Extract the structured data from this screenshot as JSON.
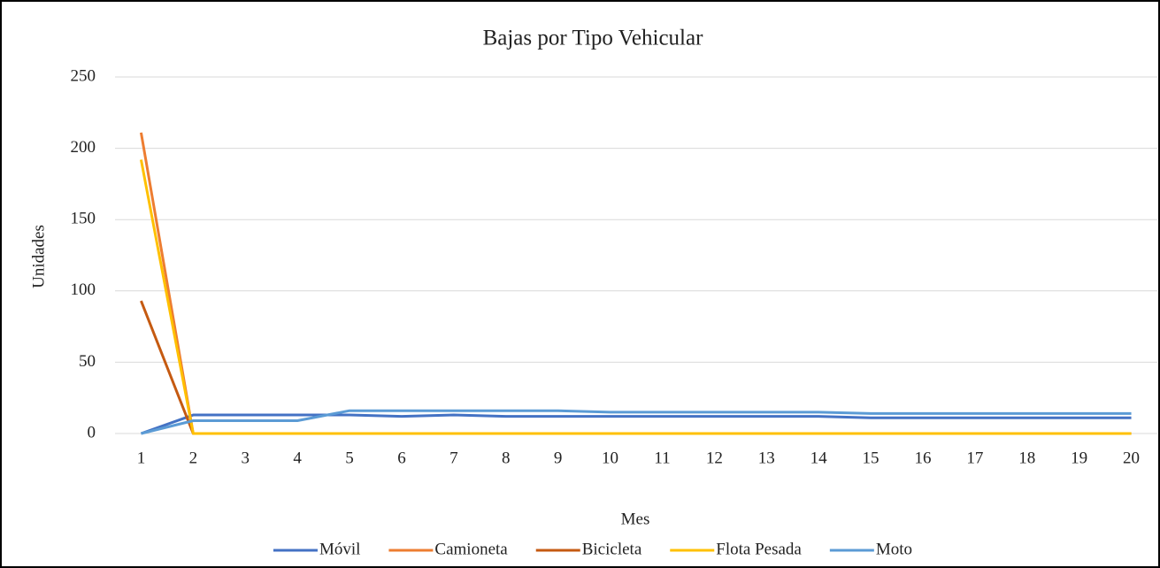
{
  "chart_data": {
    "type": "line",
    "title": "Bajas por Tipo Vehicular",
    "x_label": "Mes",
    "y_label": "Unidades",
    "categories": [
      "1",
      "2",
      "3",
      "4",
      "5",
      "6",
      "7",
      "8",
      "9",
      "10",
      "11",
      "12",
      "13",
      "14",
      "15",
      "16",
      "17",
      "18",
      "19",
      "20"
    ],
    "ylim": [
      0,
      250
    ],
    "yticks": [
      0,
      50,
      100,
      150,
      200,
      250
    ],
    "grid": true,
    "legend": "bottom",
    "series": [
      {
        "name": "Móvil",
        "color": "#4472c4",
        "values": [
          0,
          13,
          13,
          13,
          13,
          12,
          13,
          12,
          12,
          12,
          12,
          12,
          12,
          12,
          11,
          11,
          11,
          11,
          11,
          11
        ]
      },
      {
        "name": "Camioneta",
        "color": "#ed7d31",
        "values": [
          211,
          0,
          0,
          0,
          0,
          0,
          0,
          0,
          0,
          0,
          0,
          0,
          0,
          0,
          0,
          0,
          0,
          0,
          0,
          0
        ]
      },
      {
        "name": "Bicicleta",
        "color": "#c55a11",
        "values": [
          93,
          0,
          0,
          0,
          0,
          0,
          0,
          0,
          0,
          0,
          0,
          0,
          0,
          0,
          0,
          0,
          0,
          0,
          0,
          0
        ]
      },
      {
        "name": "Flota Pesada",
        "color": "#ffc000",
        "values": [
          192,
          0,
          0,
          0,
          0,
          0,
          0,
          0,
          0,
          0,
          0,
          0,
          0,
          0,
          0,
          0,
          0,
          0,
          0,
          0
        ]
      },
      {
        "name": "Moto",
        "color": "#5b9bd5",
        "values": [
          0,
          9,
          9,
          9,
          16,
          16,
          16,
          16,
          16,
          15,
          15,
          15,
          15,
          15,
          14,
          14,
          14,
          14,
          14,
          14
        ]
      }
    ]
  }
}
